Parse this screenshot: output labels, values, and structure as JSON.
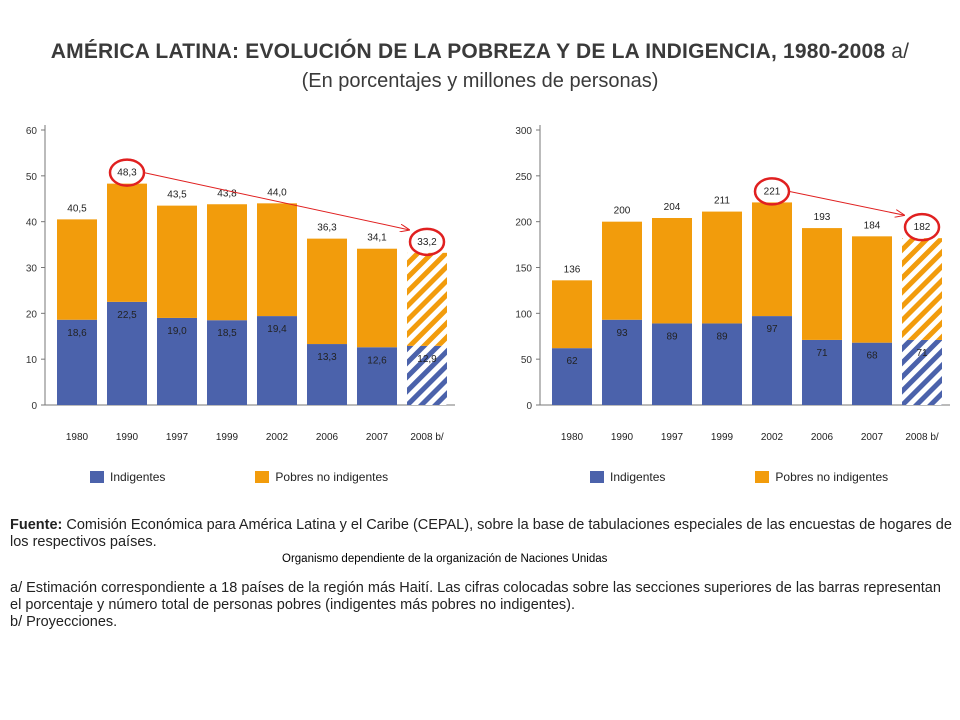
{
  "title": "AMÉRICA LATINA: EVOLUCIÓN DE LA POBREZA Y DE LA INDIGENCIA, 1980-2008",
  "title_note": "a/",
  "subtitle": "(En porcentajes y millones de personas)",
  "colors": {
    "indigentes": "#4b62ab",
    "pobres_no_indigentes": "#f29c0c",
    "highlight": "#e02020"
  },
  "chart_data": [
    {
      "type": "bar",
      "stacked": true,
      "categories": [
        "1980",
        "1990",
        "1997",
        "1999",
        "2002",
        "2006",
        "2007",
        "2008 b/"
      ],
      "series": [
        {
          "name": "Indigentes",
          "values": [
            18.6,
            22.5,
            19.0,
            18.5,
            19.4,
            13.3,
            12.6,
            12.9
          ],
          "labels": [
            "18,6",
            "22,5",
            "19,0",
            "18,5",
            "19,4",
            "13,3",
            "12,6",
            "12,9"
          ]
        },
        {
          "name": "Pobres no indigentes",
          "values": [
            21.9,
            25.8,
            24.5,
            25.3,
            24.6,
            23.0,
            21.5,
            20.3
          ]
        }
      ],
      "totals": [
        40.5,
        48.3,
        43.5,
        43.8,
        44.0,
        36.3,
        34.1,
        33.2
      ],
      "total_labels": [
        "40,5",
        "48,3",
        "43,5",
        "43,8",
        "44,0",
        "36,3",
        "34,1",
        "33,2"
      ],
      "projected_index": 7,
      "highlighted": [
        1,
        7
      ],
      "ylim": [
        0,
        60
      ],
      "yticks": [
        0,
        10,
        20,
        30,
        40,
        50,
        60
      ]
    },
    {
      "type": "bar",
      "stacked": true,
      "categories": [
        "1980",
        "1990",
        "1997",
        "1999",
        "2002",
        "2006",
        "2007",
        "2008 b/"
      ],
      "series": [
        {
          "name": "Indigentes",
          "values": [
            62,
            93,
            89,
            89,
            97,
            71,
            68,
            71
          ],
          "labels": [
            "62",
            "93",
            "89",
            "89",
            "97",
            "71",
            "68",
            "71"
          ]
        },
        {
          "name": "Pobres no indigentes",
          "values": [
            74,
            107,
            115,
            122,
            124,
            122,
            116,
            111
          ]
        }
      ],
      "totals": [
        136,
        200,
        204,
        211,
        221,
        193,
        184,
        182
      ],
      "total_labels": [
        "136",
        "200",
        "204",
        "211",
        "221",
        "193",
        "184",
        "182"
      ],
      "projected_index": 7,
      "highlighted": [
        4,
        7
      ],
      "ylim": [
        0,
        300
      ],
      "yticks": [
        0,
        50,
        100,
        150,
        200,
        250,
        300
      ]
    }
  ],
  "legend": {
    "indigentes": "Indigentes",
    "pobres": "Pobres no indigentes"
  },
  "footer": {
    "fuente_label": "Fuente:",
    "fuente_text": "Comisión Económica para América Latina y el Caribe (CEPAL), sobre la base de tabulaciones especiales de las encuestas de hogares de los respectivos países.",
    "org_note": "Organismo dependiente  de la organización  de Naciones Unidas",
    "note_a": "a/ Estimación correspondiente a 18 países de la región más Haití. Las cifras colocadas sobre las secciones superiores de las barras representan el porcentaje y número total de personas pobres (indigentes más pobres no indigentes).",
    "note_b": "b/ Proyecciones."
  }
}
